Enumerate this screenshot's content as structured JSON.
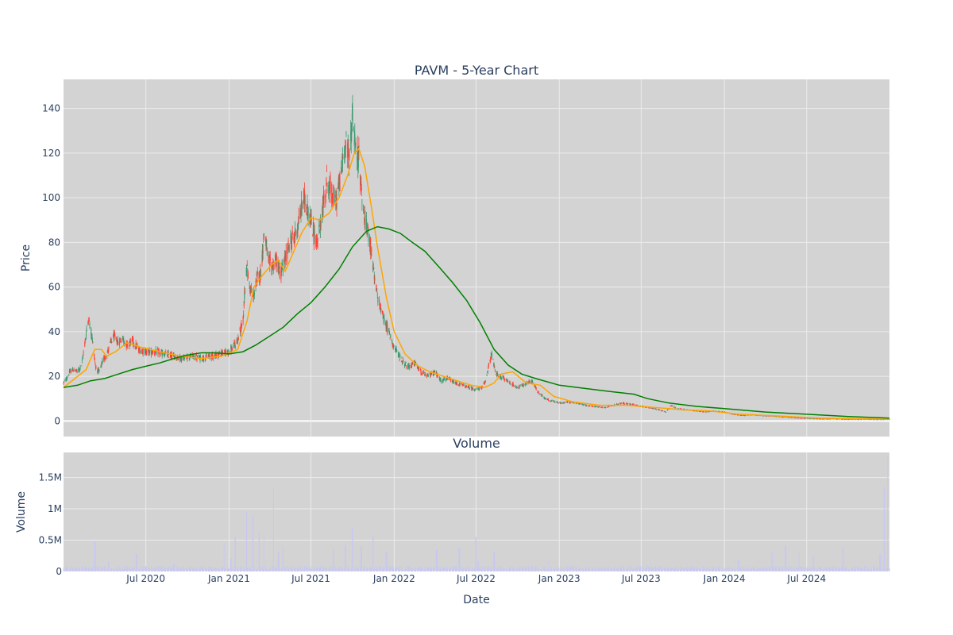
{
  "chart_data": [
    {
      "type": "candlestick",
      "title": "PAVM - 5-Year Chart",
      "ylabel": "Price",
      "xlim": [
        "2020-01-01",
        "2024-12-31"
      ],
      "ylim": [
        -7,
        153
      ],
      "yticks": [
        0,
        20,
        40,
        60,
        80,
        100,
        120,
        140
      ],
      "xticks": [
        {
          "date": "2020-07-01",
          "label": "Jul 2020"
        },
        {
          "date": "2021-01-01",
          "label": "Jan 2021"
        },
        {
          "date": "2021-07-01",
          "label": "Jul 2021"
        },
        {
          "date": "2022-01-01",
          "label": "Jan 2022"
        },
        {
          "date": "2022-07-01",
          "label": "Jul 2022"
        },
        {
          "date": "2023-01-01",
          "label": "Jan 2023"
        },
        {
          "date": "2023-07-01",
          "label": "Jul 2023"
        },
        {
          "date": "2024-01-01",
          "label": "Jan 2024"
        },
        {
          "date": "2024-07-01",
          "label": "Jul 2024"
        }
      ],
      "grid": true,
      "legend": "none",
      "colors": {
        "up": "#3d9970",
        "down": "#ff4136",
        "ma_short": "#ffa500",
        "ma_long": "#008000",
        "plot_bg": "#d3d3d3",
        "grid": "#ececec"
      },
      "price_path": [
        [
          "2020-01-01",
          17
        ],
        [
          "2020-01-08",
          19
        ],
        [
          "2020-01-15",
          22
        ],
        [
          "2020-01-22",
          23
        ],
        [
          "2020-02-01",
          22
        ],
        [
          "2020-02-10",
          25
        ],
        [
          "2020-02-18",
          36
        ],
        [
          "2020-02-25",
          46
        ],
        [
          "2020-03-04",
          38
        ],
        [
          "2020-03-12",
          24
        ],
        [
          "2020-03-20",
          22
        ],
        [
          "2020-03-28",
          27
        ],
        [
          "2020-04-06",
          30
        ],
        [
          "2020-04-14",
          35
        ],
        [
          "2020-04-22",
          38
        ],
        [
          "2020-05-01",
          35
        ],
        [
          "2020-05-10",
          37
        ],
        [
          "2020-05-20",
          34
        ],
        [
          "2020-06-01",
          36
        ],
        [
          "2020-06-15",
          32
        ],
        [
          "2020-07-01",
          31
        ],
        [
          "2020-07-20",
          31
        ],
        [
          "2020-08-10",
          30
        ],
        [
          "2020-08-31",
          29
        ],
        [
          "2020-09-20",
          28
        ],
        [
          "2020-10-10",
          29
        ],
        [
          "2020-10-31",
          28
        ],
        [
          "2020-11-20",
          29
        ],
        [
          "2020-12-10",
          30
        ],
        [
          "2020-12-31",
          31
        ],
        [
          "2021-01-10",
          33
        ],
        [
          "2021-01-20",
          36
        ],
        [
          "2021-02-01",
          45
        ],
        [
          "2021-02-08",
          70
        ],
        [
          "2021-02-16",
          60
        ],
        [
          "2021-02-24",
          56
        ],
        [
          "2021-03-04",
          64
        ],
        [
          "2021-03-12",
          66
        ],
        [
          "2021-03-20",
          86
        ],
        [
          "2021-03-28",
          72
        ],
        [
          "2021-04-05",
          69
        ],
        [
          "2021-04-15",
          72
        ],
        [
          "2021-04-25",
          66
        ],
        [
          "2021-05-05",
          72
        ],
        [
          "2021-05-15",
          80
        ],
        [
          "2021-05-25",
          82
        ],
        [
          "2021-06-05",
          90
        ],
        [
          "2021-06-15",
          100
        ],
        [
          "2021-06-25",
          94
        ],
        [
          "2021-07-05",
          86
        ],
        [
          "2021-07-15",
          79
        ],
        [
          "2021-07-25",
          92
        ],
        [
          "2021-08-05",
          108
        ],
        [
          "2021-08-15",
          102
        ],
        [
          "2021-08-25",
          98
        ],
        [
          "2021-09-05",
          110
        ],
        [
          "2021-09-15",
          125
        ],
        [
          "2021-09-25",
          118
        ],
        [
          "2021-10-01",
          138
        ],
        [
          "2021-10-08",
          120
        ],
        [
          "2021-10-15",
          118
        ],
        [
          "2021-10-22",
          100
        ],
        [
          "2021-10-29",
          88
        ],
        [
          "2021-11-05",
          84
        ],
        [
          "2021-11-12",
          76
        ],
        [
          "2021-11-19",
          62
        ],
        [
          "2021-11-26",
          55
        ],
        [
          "2021-12-03",
          50
        ],
        [
          "2021-12-10",
          45
        ],
        [
          "2021-12-20",
          40
        ],
        [
          "2022-01-01",
          33
        ],
        [
          "2022-01-15",
          28
        ],
        [
          "2022-02-01",
          24
        ],
        [
          "2022-02-15",
          26
        ],
        [
          "2022-03-01",
          22
        ],
        [
          "2022-03-15",
          20
        ],
        [
          "2022-04-01",
          22
        ],
        [
          "2022-04-15",
          18
        ],
        [
          "2022-05-01",
          19
        ],
        [
          "2022-05-15",
          17
        ],
        [
          "2022-06-01",
          16
        ],
        [
          "2022-06-15",
          15
        ],
        [
          "2022-07-01",
          14
        ],
        [
          "2022-07-15",
          15
        ],
        [
          "2022-07-22",
          18
        ],
        [
          "2022-07-29",
          25
        ],
        [
          "2022-08-05",
          30
        ],
        [
          "2022-08-12",
          22
        ],
        [
          "2022-08-20",
          20
        ],
        [
          "2022-09-01",
          19
        ],
        [
          "2022-09-15",
          17
        ],
        [
          "2022-10-01",
          15
        ],
        [
          "2022-10-15",
          16
        ],
        [
          "2022-11-01",
          18
        ],
        [
          "2022-11-15",
          13
        ],
        [
          "2022-12-01",
          10
        ],
        [
          "2022-12-15",
          9
        ],
        [
          "2023-01-01",
          8
        ],
        [
          "2023-01-20",
          8.5
        ],
        [
          "2023-02-10",
          8
        ],
        [
          "2023-03-01",
          7
        ],
        [
          "2023-03-20",
          6.5
        ],
        [
          "2023-04-10",
          6
        ],
        [
          "2023-05-01",
          7
        ],
        [
          "2023-05-20",
          8
        ],
        [
          "2023-06-10",
          7.5
        ],
        [
          "2023-07-01",
          6.5
        ],
        [
          "2023-07-20",
          6
        ],
        [
          "2023-08-10",
          5
        ],
        [
          "2023-08-25",
          4
        ],
        [
          "2023-09-05",
          7
        ],
        [
          "2023-09-20",
          5.5
        ],
        [
          "2023-10-10",
          5
        ],
        [
          "2023-11-01",
          4.5
        ],
        [
          "2023-11-20",
          4
        ],
        [
          "2023-12-10",
          4.5
        ],
        [
          "2024-01-01",
          4
        ],
        [
          "2024-01-20",
          3
        ],
        [
          "2024-02-10",
          2.5
        ],
        [
          "2024-03-01",
          2.8
        ],
        [
          "2024-03-20",
          2.5
        ],
        [
          "2024-04-10",
          2.2
        ],
        [
          "2024-05-01",
          2
        ],
        [
          "2024-06-01",
          1.5
        ],
        [
          "2024-07-01",
          1.2
        ],
        [
          "2024-08-01",
          1
        ],
        [
          "2024-09-01",
          1
        ],
        [
          "2024-10-01",
          0.8
        ],
        [
          "2024-11-01",
          0.8
        ],
        [
          "2024-12-31",
          0.7
        ]
      ],
      "ma_short": [
        [
          "2020-01-01",
          15
        ],
        [
          "2020-02-01",
          20
        ],
        [
          "2020-02-20",
          23
        ],
        [
          "2020-03-10",
          32
        ],
        [
          "2020-03-25",
          32
        ],
        [
          "2020-04-05",
          29
        ],
        [
          "2020-04-25",
          31
        ],
        [
          "2020-05-20",
          35
        ],
        [
          "2020-06-20",
          33
        ],
        [
          "2020-08-01",
          31
        ],
        [
          "2020-09-15",
          29
        ],
        [
          "2020-11-01",
          28
        ],
        [
          "2020-12-15",
          29
        ],
        [
          "2021-01-20",
          32
        ],
        [
          "2021-02-10",
          45
        ],
        [
          "2021-02-25",
          60
        ],
        [
          "2021-03-15",
          65
        ],
        [
          "2021-04-05",
          70
        ],
        [
          "2021-04-20",
          72
        ],
        [
          "2021-05-05",
          67
        ],
        [
          "2021-05-20",
          74
        ],
        [
          "2021-06-10",
          84
        ],
        [
          "2021-07-01",
          91
        ],
        [
          "2021-07-20",
          90
        ],
        [
          "2021-08-10",
          93
        ],
        [
          "2021-09-01",
          100
        ],
        [
          "2021-09-20",
          110
        ],
        [
          "2021-10-05",
          120
        ],
        [
          "2021-10-15",
          122
        ],
        [
          "2021-10-28",
          114
        ],
        [
          "2021-11-10",
          98
        ],
        [
          "2021-11-25",
          78
        ],
        [
          "2021-12-15",
          55
        ],
        [
          "2022-01-01",
          40
        ],
        [
          "2022-01-25",
          30
        ],
        [
          "2022-02-20",
          25
        ],
        [
          "2022-03-20",
          22
        ],
        [
          "2022-04-20",
          20
        ],
        [
          "2022-05-20",
          18
        ],
        [
          "2022-06-20",
          16
        ],
        [
          "2022-07-20",
          15
        ],
        [
          "2022-08-10",
          17
        ],
        [
          "2022-08-25",
          21
        ],
        [
          "2022-09-20",
          22
        ],
        [
          "2022-10-20",
          17
        ],
        [
          "2022-11-20",
          16
        ],
        [
          "2022-12-20",
          11
        ],
        [
          "2023-02-01",
          8.5
        ],
        [
          "2023-04-01",
          7
        ],
        [
          "2023-06-01",
          7
        ],
        [
          "2023-08-01",
          6
        ],
        [
          "2023-10-01",
          5
        ],
        [
          "2023-12-01",
          4.5
        ],
        [
          "2024-02-01",
          3
        ],
        [
          "2024-05-01",
          2.2
        ],
        [
          "2024-08-01",
          1.2
        ],
        [
          "2024-12-31",
          0.8
        ]
      ],
      "ma_long": [
        [
          "2020-01-01",
          15
        ],
        [
          "2020-02-01",
          16
        ],
        [
          "2020-03-01",
          18
        ],
        [
          "2020-04-01",
          19
        ],
        [
          "2020-05-01",
          21
        ],
        [
          "2020-06-01",
          23
        ],
        [
          "2020-07-01",
          24.5
        ],
        [
          "2020-08-01",
          26
        ],
        [
          "2020-09-01",
          28
        ],
        [
          "2020-10-01",
          29.5
        ],
        [
          "2020-11-01",
          30.5
        ],
        [
          "2020-12-01",
          30.5
        ],
        [
          "2021-01-01",
          30
        ],
        [
          "2021-02-01",
          31
        ],
        [
          "2021-03-01",
          34
        ],
        [
          "2021-04-01",
          38
        ],
        [
          "2021-05-01",
          42
        ],
        [
          "2021-06-01",
          48
        ],
        [
          "2021-07-01",
          53
        ],
        [
          "2021-08-01",
          60
        ],
        [
          "2021-09-01",
          68
        ],
        [
          "2021-10-01",
          78
        ],
        [
          "2021-11-01",
          85
        ],
        [
          "2021-11-25",
          87
        ],
        [
          "2021-12-20",
          86
        ],
        [
          "2022-01-15",
          84
        ],
        [
          "2022-02-10",
          80
        ],
        [
          "2022-03-10",
          76
        ],
        [
          "2022-04-10",
          69
        ],
        [
          "2022-05-10",
          62
        ],
        [
          "2022-06-10",
          54
        ],
        [
          "2022-07-10",
          44
        ],
        [
          "2022-08-10",
          32
        ],
        [
          "2022-09-10",
          25
        ],
        [
          "2022-10-10",
          21
        ],
        [
          "2022-11-10",
          19
        ],
        [
          "2023-01-01",
          16
        ],
        [
          "2023-03-01",
          14.5
        ],
        [
          "2023-05-01",
          13
        ],
        [
          "2023-06-15",
          12
        ],
        [
          "2023-07-15",
          10
        ],
        [
          "2023-09-01",
          8
        ],
        [
          "2023-11-01",
          6.5
        ],
        [
          "2024-01-01",
          5.5
        ],
        [
          "2024-04-01",
          4
        ],
        [
          "2024-07-01",
          3
        ],
        [
          "2024-10-01",
          2
        ],
        [
          "2024-12-31",
          1.3
        ]
      ]
    },
    {
      "type": "bar",
      "title": "Volume",
      "xlabel": "Date",
      "ylabel": "Volume",
      "ylim": [
        0,
        1900000
      ],
      "yticks": [
        {
          "value": 0,
          "label": "0"
        },
        {
          "value": 500000,
          "label": "0.5M"
        },
        {
          "value": 1000000,
          "label": "1M"
        },
        {
          "value": 1500000,
          "label": "1.5M"
        }
      ],
      "bar_color": "#c8c8f0",
      "base_volume": 60000,
      "spikes": [
        [
          "2020-03-10",
          480000
        ],
        [
          "2020-04-10",
          160000
        ],
        [
          "2020-06-10",
          280000
        ],
        [
          "2020-09-01",
          120000
        ],
        [
          "2020-12-20",
          450000
        ],
        [
          "2021-01-05",
          200000
        ],
        [
          "2021-01-15",
          550000
        ],
        [
          "2021-02-08",
          960000
        ],
        [
          "2021-02-22",
          900000
        ],
        [
          "2021-03-08",
          650000
        ],
        [
          "2021-03-20",
          600000
        ],
        [
          "2021-04-10",
          1350000
        ],
        [
          "2021-04-20",
          300000
        ],
        [
          "2021-05-01",
          400000
        ],
        [
          "2021-08-20",
          350000
        ],
        [
          "2021-09-15",
          420000
        ],
        [
          "2021-10-01",
          700000
        ],
        [
          "2021-10-20",
          400000
        ],
        [
          "2021-11-15",
          580000
        ],
        [
          "2021-12-15",
          300000
        ],
        [
          "2022-04-05",
          350000
        ],
        [
          "2022-05-25",
          380000
        ],
        [
          "2022-07-01",
          550000
        ],
        [
          "2022-07-05",
          160000
        ],
        [
          "2022-08-10",
          320000
        ],
        [
          "2022-12-10",
          200000
        ],
        [
          "2024-02-01",
          180000
        ],
        [
          "2024-04-15",
          300000
        ],
        [
          "2024-05-15",
          420000
        ],
        [
          "2024-06-15",
          300000
        ],
        [
          "2024-07-15",
          250000
        ],
        [
          "2024-09-20",
          380000
        ],
        [
          "2024-12-10",
          280000
        ],
        [
          "2024-12-20",
          1350000
        ],
        [
          "2024-12-28",
          1850000
        ]
      ]
    }
  ]
}
